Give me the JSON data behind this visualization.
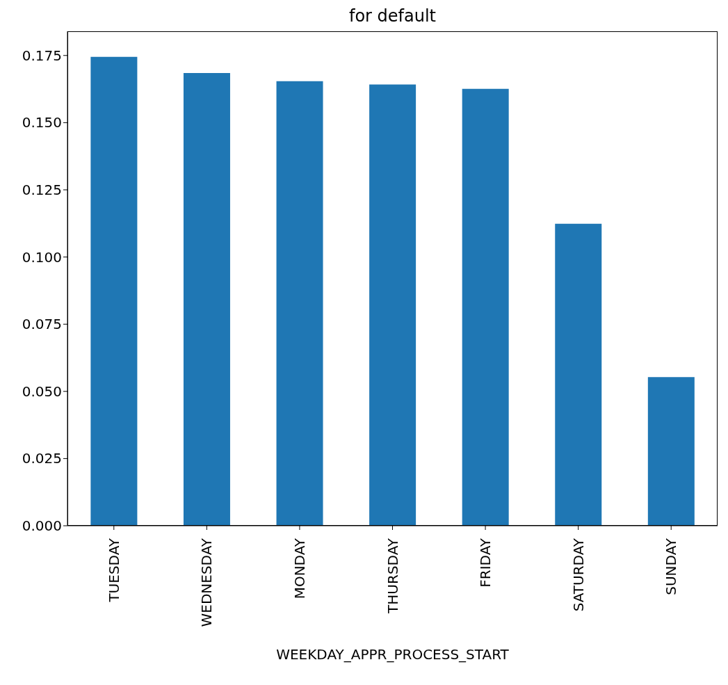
{
  "chart_data": {
    "type": "bar",
    "title": "for default",
    "xlabel": "WEEKDAY_APPR_PROCESS_START",
    "categories": [
      "TUESDAY",
      "WEDNESDAY",
      "MONDAY",
      "THURSDAY",
      "FRIDAY",
      "SATURDAY",
      "SUNDAY"
    ],
    "values": [
      0.1745,
      0.1685,
      0.1654,
      0.1642,
      0.1626,
      0.1124,
      0.0553
    ],
    "color": "#1f77b4",
    "ylim": [
      0,
      0.184
    ],
    "yticks": [
      {
        "value": 0,
        "label": "0.000"
      },
      {
        "value": 0.025,
        "label": "0.025"
      },
      {
        "value": 0.05,
        "label": "0.050"
      },
      {
        "value": 0.075,
        "label": "0.075"
      },
      {
        "value": 0.1,
        "label": "0.100"
      },
      {
        "value": 0.125,
        "label": "0.125"
      },
      {
        "value": 0.15,
        "label": "0.150"
      },
      {
        "value": 0.175,
        "label": "0.175"
      }
    ],
    "grid": false,
    "legend": false
  }
}
